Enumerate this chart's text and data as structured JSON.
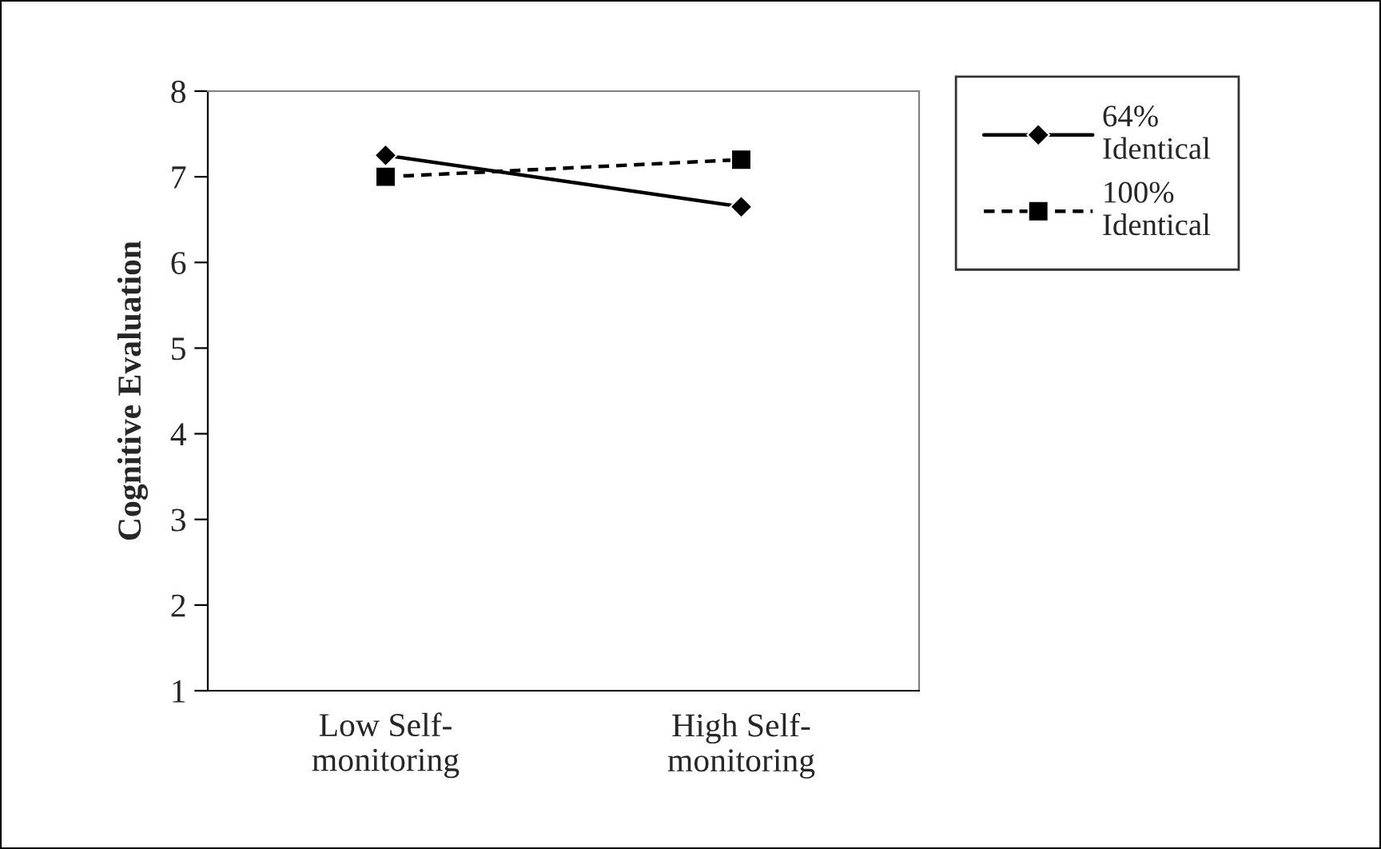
{
  "chart_data": {
    "type": "line",
    "ylabel": "Cognitive Evaluation",
    "categories": [
      "Low Self-\nmonitoring",
      "High Self-\nmonitoring"
    ],
    "series": [
      {
        "name": "64%\nIdentical",
        "color": "#000000",
        "values": [
          7.25,
          6.65
        ],
        "marker": "diamond",
        "line_style": "solid"
      },
      {
        "name": "100%\nIdentical",
        "color": "#000000",
        "values": [
          7.0,
          7.2
        ],
        "marker": "square",
        "line_style": "dashed"
      }
    ],
    "ylim": [
      1,
      8
    ],
    "yticks": [
      1,
      2,
      3,
      4,
      5,
      6,
      7,
      8
    ],
    "grid": false,
    "legend": "right"
  }
}
